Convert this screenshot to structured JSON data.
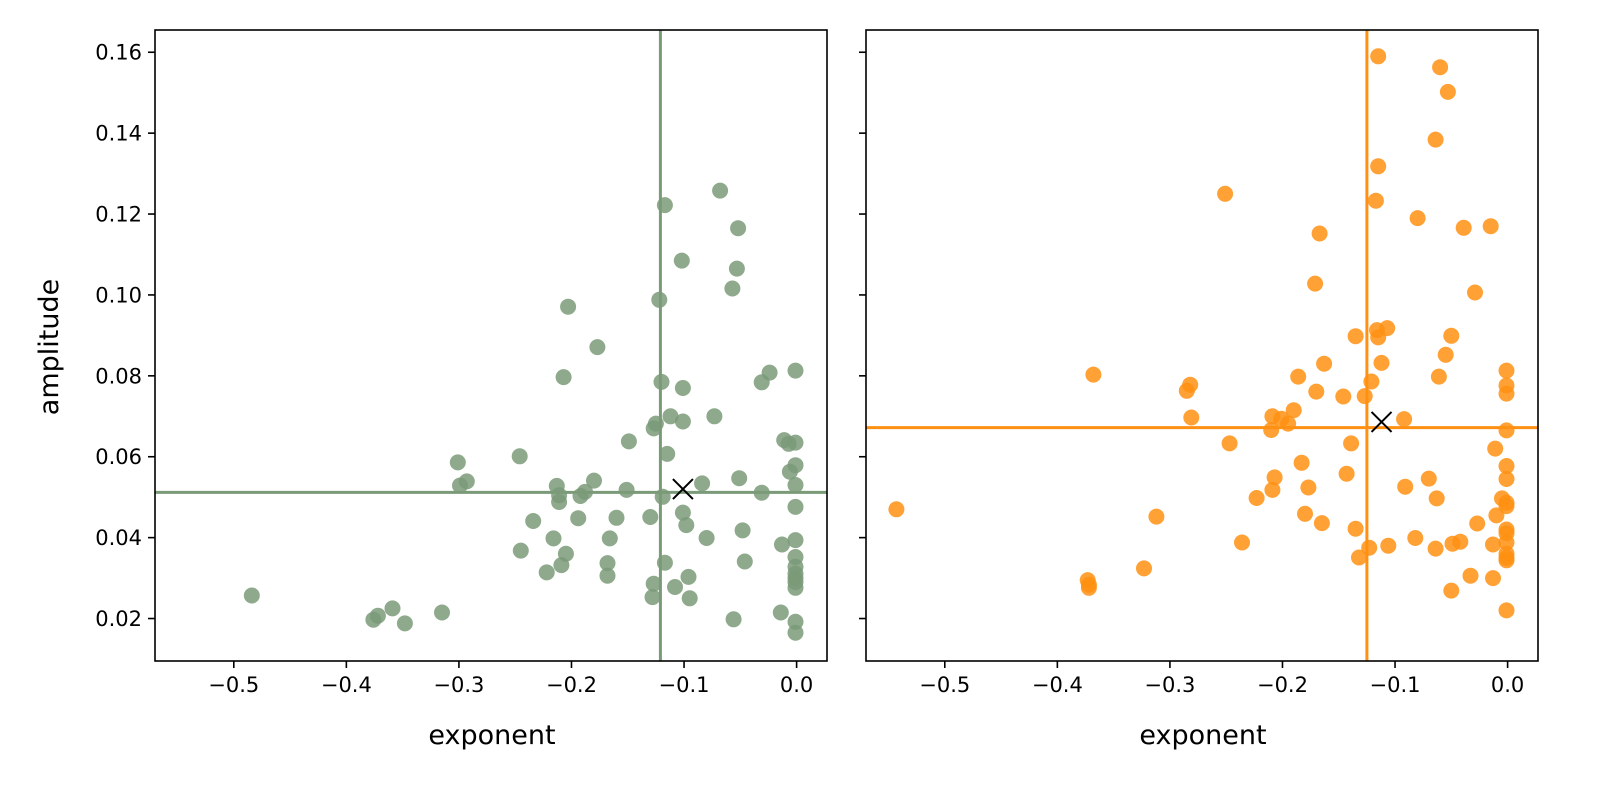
{
  "chart_data": [
    {
      "type": "scatter",
      "xlabel": "exponent",
      "ylabel": "amplitude",
      "xlim": [
        -0.57,
        0.027
      ],
      "ylim": [
        0.0095,
        0.1655
      ],
      "xticks": [
        -0.5,
        -0.4,
        -0.3,
        -0.2,
        -0.1,
        0.0
      ],
      "xtick_labels": [
        "−0.5",
        "−0.4",
        "−0.3",
        "−0.2",
        "−0.1",
        "0.0"
      ],
      "yticks": [
        0.02,
        0.04,
        0.06,
        0.08,
        0.1,
        0.12,
        0.14,
        0.16
      ],
      "ytick_labels": [
        "0.02",
        "0.04",
        "0.06",
        "0.08",
        "0.10",
        "0.12",
        "0.14",
        "0.16"
      ],
      "color": "#7a9a78",
      "vline_x": -0.121,
      "hline_y": 0.0512,
      "mean_marker": {
        "x": -0.101,
        "y": 0.052
      },
      "points": [
        [
          -0.484,
          0.0257
        ],
        [
          -0.376,
          0.0197
        ],
        [
          -0.372,
          0.0207
        ],
        [
          -0.359,
          0.0225
        ],
        [
          -0.348,
          0.0188
        ],
        [
          -0.315,
          0.0215
        ],
        [
          -0.301,
          0.0586
        ],
        [
          -0.299,
          0.0529
        ],
        [
          -0.293,
          0.0539
        ],
        [
          -0.246,
          0.0601
        ],
        [
          -0.245,
          0.0368
        ],
        [
          -0.234,
          0.0441
        ],
        [
          -0.222,
          0.0314
        ],
        [
          -0.216,
          0.0398
        ],
        [
          -0.213,
          0.0528
        ],
        [
          -0.211,
          0.0505
        ],
        [
          -0.211,
          0.0488
        ],
        [
          -0.209,
          0.0332
        ],
        [
          -0.207,
          0.0797
        ],
        [
          -0.205,
          0.036
        ],
        [
          -0.203,
          0.0971
        ],
        [
          -0.194,
          0.0448
        ],
        [
          -0.192,
          0.0503
        ],
        [
          -0.188,
          0.0513
        ],
        [
          -0.18,
          0.0541
        ],
        [
          -0.177,
          0.0871
        ],
        [
          -0.168,
          0.0337
        ],
        [
          -0.168,
          0.0306
        ],
        [
          -0.166,
          0.0398
        ],
        [
          -0.16,
          0.0449
        ],
        [
          -0.151,
          0.0518
        ],
        [
          -0.149,
          0.0638
        ],
        [
          -0.13,
          0.0451
        ],
        [
          -0.128,
          0.0253
        ],
        [
          -0.127,
          0.0286
        ],
        [
          -0.127,
          0.067
        ],
        [
          -0.125,
          0.0682
        ],
        [
          -0.122,
          0.0988
        ],
        [
          -0.12,
          0.0785
        ],
        [
          -0.119,
          0.0501
        ],
        [
          -0.117,
          0.1222
        ],
        [
          -0.117,
          0.0338
        ],
        [
          -0.115,
          0.0607
        ],
        [
          -0.112,
          0.07
        ],
        [
          -0.108,
          0.0278
        ],
        [
          -0.102,
          0.1085
        ],
        [
          -0.101,
          0.077
        ],
        [
          -0.101,
          0.0687
        ],
        [
          -0.101,
          0.0462
        ],
        [
          -0.098,
          0.0431
        ],
        [
          -0.096,
          0.0303
        ],
        [
          -0.095,
          0.025
        ],
        [
          -0.084,
          0.0534
        ],
        [
          -0.08,
          0.0399
        ],
        [
          -0.073,
          0.07
        ],
        [
          -0.068,
          0.1258
        ],
        [
          -0.057,
          0.1016
        ],
        [
          -0.056,
          0.0198
        ],
        [
          -0.053,
          0.1065
        ],
        [
          -0.052,
          0.1165
        ],
        [
          -0.051,
          0.0547
        ],
        [
          -0.048,
          0.0418
        ],
        [
          -0.046,
          0.0341
        ],
        [
          -0.031,
          0.0784
        ],
        [
          -0.031,
          0.0511
        ],
        [
          -0.024,
          0.0808
        ],
        [
          -0.014,
          0.0215
        ],
        [
          -0.013,
          0.0383
        ],
        [
          -0.011,
          0.0641
        ],
        [
          -0.007,
          0.0632
        ],
        [
          -0.006,
          0.0563
        ],
        [
          -0.001,
          0.0813
        ],
        [
          -0.001,
          0.0635
        ],
        [
          -0.001,
          0.0579
        ],
        [
          -0.001,
          0.053
        ],
        [
          -0.001,
          0.0476
        ],
        [
          -0.001,
          0.0394
        ],
        [
          -0.001,
          0.0352
        ],
        [
          -0.001,
          0.0328
        ],
        [
          -0.001,
          0.0311
        ],
        [
          -0.001,
          0.03
        ],
        [
          -0.001,
          0.029
        ],
        [
          -0.001,
          0.0276
        ],
        [
          -0.001,
          0.0192
        ],
        [
          -0.001,
          0.0165
        ]
      ]
    },
    {
      "type": "scatter",
      "xlabel": "exponent",
      "ylabel": "",
      "xlim": [
        -0.57,
        0.027
      ],
      "ylim": [
        0.0095,
        0.1655
      ],
      "xticks": [
        -0.5,
        -0.4,
        -0.3,
        -0.2,
        -0.1,
        0.0
      ],
      "xtick_labels": [
        "−0.5",
        "−0.4",
        "−0.3",
        "−0.2",
        "−0.1",
        "0.0"
      ],
      "yticks": [
        0.02,
        0.04,
        0.06,
        0.08,
        0.1,
        0.12,
        0.14,
        0.16
      ],
      "ytick_labels": [],
      "color": "#ff9012",
      "vline_x": -0.125,
      "hline_y": 0.0672,
      "mean_marker": {
        "x": -0.112,
        "y": 0.0686
      },
      "points": [
        [
          -0.543,
          0.047
        ],
        [
          -0.373,
          0.0295
        ],
        [
          -0.372,
          0.0284
        ],
        [
          -0.372,
          0.0276
        ],
        [
          -0.368,
          0.0803
        ],
        [
          -0.323,
          0.0324
        ],
        [
          -0.312,
          0.0452
        ],
        [
          -0.285,
          0.0763
        ],
        [
          -0.282,
          0.0778
        ],
        [
          -0.281,
          0.0697
        ],
        [
          -0.251,
          0.125
        ],
        [
          -0.247,
          0.0633
        ],
        [
          -0.236,
          0.0388
        ],
        [
          -0.223,
          0.0498
        ],
        [
          -0.21,
          0.0666
        ],
        [
          -0.209,
          0.07
        ],
        [
          -0.209,
          0.0518
        ],
        [
          -0.207,
          0.0549
        ],
        [
          -0.201,
          0.0694
        ],
        [
          -0.195,
          0.0682
        ],
        [
          -0.19,
          0.0715
        ],
        [
          -0.186,
          0.0798
        ],
        [
          -0.183,
          0.0585
        ],
        [
          -0.18,
          0.0459
        ],
        [
          -0.177,
          0.0524
        ],
        [
          -0.171,
          0.1028
        ],
        [
          -0.17,
          0.0761
        ],
        [
          -0.167,
          0.1152
        ],
        [
          -0.165,
          0.0436
        ],
        [
          -0.163,
          0.083
        ],
        [
          -0.146,
          0.0749
        ],
        [
          -0.143,
          0.0558
        ],
        [
          -0.139,
          0.0633
        ],
        [
          -0.135,
          0.0898
        ],
        [
          -0.135,
          0.0422
        ],
        [
          -0.132,
          0.0351
        ],
        [
          -0.127,
          0.075
        ],
        [
          -0.123,
          0.0375
        ],
        [
          -0.121,
          0.0786
        ],
        [
          -0.117,
          0.1233
        ],
        [
          -0.116,
          0.0913
        ],
        [
          -0.115,
          0.159
        ],
        [
          -0.115,
          0.1318
        ],
        [
          -0.115,
          0.0895
        ],
        [
          -0.112,
          0.0832
        ],
        [
          -0.107,
          0.0918
        ],
        [
          -0.106,
          0.038
        ],
        [
          -0.092,
          0.0693
        ],
        [
          -0.091,
          0.0526
        ],
        [
          -0.082,
          0.0399
        ],
        [
          -0.08,
          0.119
        ],
        [
          -0.07,
          0.0546
        ],
        [
          -0.064,
          0.1384
        ],
        [
          -0.064,
          0.0373
        ],
        [
          -0.063,
          0.0497
        ],
        [
          -0.061,
          0.0798
        ],
        [
          -0.06,
          0.1563
        ],
        [
          -0.055,
          0.0852
        ],
        [
          -0.053,
          0.1502
        ],
        [
          -0.05,
          0.0899
        ],
        [
          -0.05,
          0.0269
        ],
        [
          -0.049,
          0.0385
        ],
        [
          -0.042,
          0.039
        ],
        [
          -0.039,
          0.1166
        ],
        [
          -0.033,
          0.0306
        ],
        [
          -0.029,
          0.1006
        ],
        [
          -0.027,
          0.0435
        ],
        [
          -0.015,
          0.117
        ],
        [
          -0.013,
          0.0383
        ],
        [
          -0.013,
          0.03
        ],
        [
          -0.011,
          0.062
        ],
        [
          -0.01,
          0.0455
        ],
        [
          -0.005,
          0.0497
        ],
        [
          -0.001,
          0.0813
        ],
        [
          -0.001,
          0.0776
        ],
        [
          -0.001,
          0.0756
        ],
        [
          -0.001,
          0.0665
        ],
        [
          -0.001,
          0.0577
        ],
        [
          -0.001,
          0.0545
        ],
        [
          -0.001,
          0.0486
        ],
        [
          -0.001,
          0.0478
        ],
        [
          -0.001,
          0.042
        ],
        [
          -0.001,
          0.0411
        ],
        [
          -0.001,
          0.0388
        ],
        [
          -0.001,
          0.036
        ],
        [
          -0.001,
          0.035
        ],
        [
          -0.001,
          0.0344
        ],
        [
          -0.001,
          0.022
        ]
      ]
    }
  ]
}
